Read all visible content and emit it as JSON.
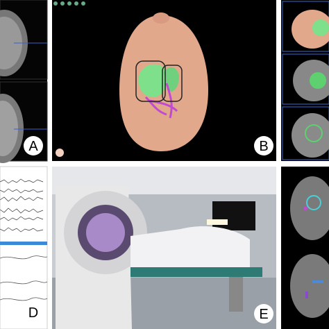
{
  "panels": [
    {
      "label": "A"
    },
    {
      "label": "B"
    },
    {
      "label": "D"
    },
    {
      "label": "E"
    }
  ]
}
